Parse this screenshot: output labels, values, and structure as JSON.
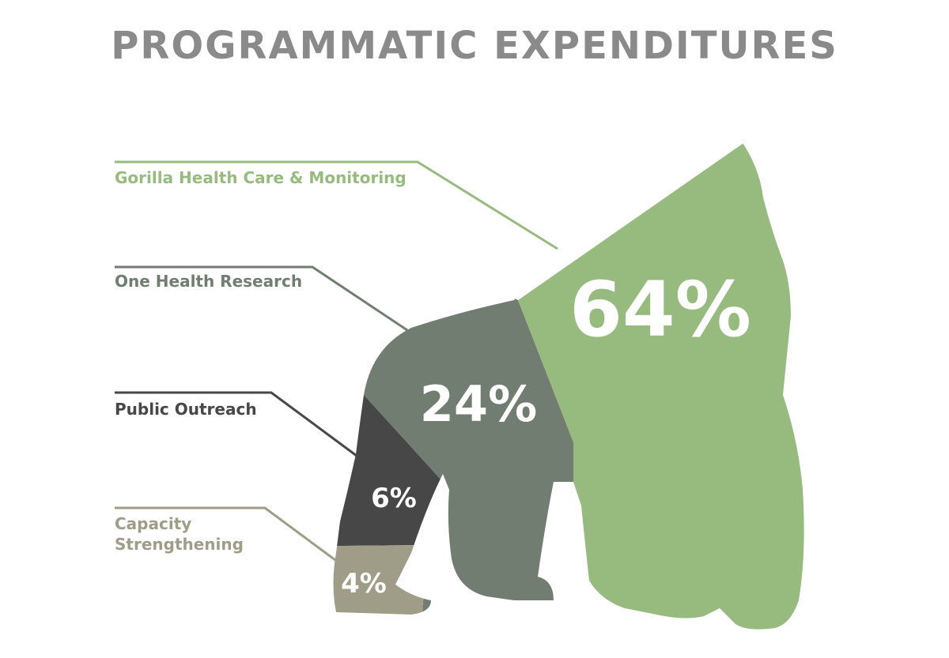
{
  "title": "PROGRAMMATIC EXPENDITURES",
  "chart_data": {
    "type": "pie",
    "title": "PROGRAMMATIC EXPENDITURES",
    "segments": [
      {
        "name": "Gorilla Health Care & Monitoring",
        "value": 64,
        "label": "64%",
        "color": "#97bb7f"
      },
      {
        "name": "One Health Research",
        "value": 24,
        "label": "24%",
        "color": "#717d71"
      },
      {
        "name": "Public Outreach",
        "value": 6,
        "label": "6%",
        "color": "#474747"
      },
      {
        "name": "Capacity Strengthening",
        "value": 4,
        "label": "4%",
        "color": "#9f9d87"
      }
    ]
  }
}
